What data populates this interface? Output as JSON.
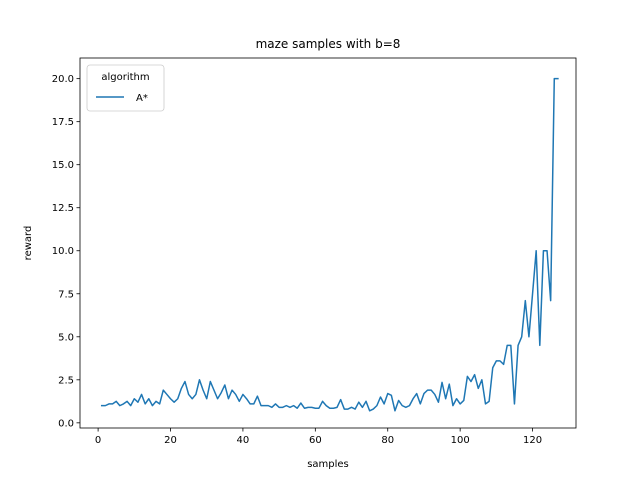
{
  "chart_data": {
    "type": "line",
    "title": "maze samples with b=8",
    "xlabel": "samples",
    "ylabel": "reward",
    "xlim": [
      -5,
      132
    ],
    "ylim": [
      -0.3,
      21.2
    ],
    "xticks": [
      0,
      20,
      40,
      60,
      80,
      100,
      120
    ],
    "yticks": [
      0.0,
      2.5,
      5.0,
      7.5,
      10.0,
      12.5,
      15.0,
      17.5,
      20.0
    ],
    "ytick_labels": [
      "0.0",
      "2.5",
      "5.0",
      "7.5",
      "10.0",
      "12.5",
      "15.0",
      "17.5",
      "20.0"
    ],
    "grid": false,
    "legend": {
      "title": "algorithm",
      "placement": "top-left"
    },
    "series": [
      {
        "name": "A*",
        "color": "#1f77b4",
        "x_start": 1,
        "x_step": 1,
        "values": [
          1.0,
          1.0,
          1.1,
          1.1,
          1.25,
          1.0,
          1.1,
          1.25,
          1.0,
          1.4,
          1.2,
          1.65,
          1.1,
          1.4,
          1.0,
          1.25,
          1.1,
          1.9,
          1.65,
          1.4,
          1.2,
          1.4,
          2.0,
          2.4,
          1.65,
          1.4,
          1.65,
          2.5,
          1.9,
          1.4,
          2.4,
          1.9,
          1.4,
          1.75,
          2.2,
          1.4,
          1.9,
          1.65,
          1.25,
          1.65,
          1.4,
          1.1,
          1.1,
          1.55,
          1.0,
          1.0,
          1.0,
          0.9,
          1.1,
          0.9,
          0.9,
          1.0,
          0.9,
          1.0,
          0.85,
          1.15,
          0.85,
          0.9,
          0.9,
          0.85,
          0.85,
          1.25,
          1.0,
          0.85,
          0.85,
          0.9,
          1.35,
          0.8,
          0.8,
          0.9,
          0.8,
          1.2,
          0.9,
          1.25,
          0.7,
          0.8,
          1.0,
          1.5,
          1.1,
          1.7,
          1.6,
          0.7,
          1.3,
          1.0,
          0.9,
          1.0,
          1.4,
          1.7,
          1.1,
          1.7,
          1.9,
          1.9,
          1.65,
          1.2,
          2.35,
          1.4,
          2.25,
          1.0,
          1.4,
          1.1,
          1.3,
          2.7,
          2.4,
          2.8,
          2.0,
          2.5,
          1.1,
          1.25,
          3.2,
          3.6,
          3.6,
          3.4,
          4.5,
          4.5,
          1.1,
          4.5,
          5.0,
          7.1,
          5.0,
          7.5,
          10.0,
          4.5,
          10.0,
          10.0,
          7.1,
          20.0,
          20.0
        ]
      }
    ]
  }
}
